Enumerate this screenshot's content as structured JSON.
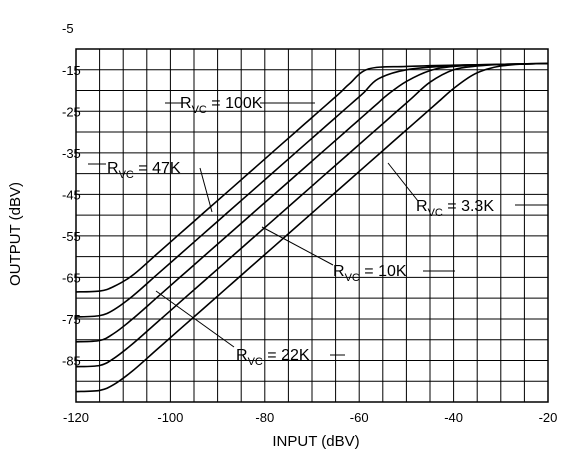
{
  "chart_data": {
    "type": "line",
    "title": "",
    "xlabel": "INPUT (dBV)",
    "ylabel": "OUTPUT (dBV)",
    "xlim": [
      -120,
      -20
    ],
    "ylim": [
      -95,
      -10
    ],
    "grid": true,
    "legend": "none",
    "x_ticks": [
      "-120",
      "-100",
      "-80",
      "-60",
      "-40",
      "-20"
    ],
    "y_ticks": [
      "-5",
      "-15",
      "-25",
      "-35",
      "-45",
      "-55",
      "-65",
      "-75",
      "-85"
    ],
    "series": [
      {
        "label_main": "R",
        "label_sub": "VC",
        "label_val": " = 100K",
        "x": [
          -120,
          -115,
          -112,
          -108,
          -103,
          -98,
          -93,
          -88,
          -83,
          -78,
          -73,
          -70,
          -68,
          -66,
          -64,
          -62,
          -58,
          -50,
          -40,
          -30,
          -20
        ],
        "y": [
          -68.5,
          -68.3,
          -67.2,
          -64.5,
          -59.5,
          -54.5,
          -49.5,
          -44.5,
          -39.5,
          -34.5,
          -29.5,
          -26.5,
          -24.5,
          -22.5,
          -20.5,
          -18.3,
          -14.8,
          -14.2,
          -13.9,
          -13.7,
          -13.5
        ]
      },
      {
        "label_main": "R",
        "label_sub": "VC",
        "label_val": " = 47K",
        "x": [
          -120,
          -115,
          -112,
          -108,
          -103,
          -98,
          -93,
          -88,
          -83,
          -78,
          -73,
          -68,
          -65,
          -63,
          -61,
          -59,
          -56,
          -50,
          -40,
          -30,
          -20
        ],
        "y": [
          -74.5,
          -74.2,
          -72.8,
          -69.5,
          -64.5,
          -59.5,
          -54.5,
          -49.5,
          -44.5,
          -39.5,
          -34.5,
          -29.5,
          -26.5,
          -24.5,
          -22.5,
          -20.5,
          -17.2,
          -15.0,
          -14.0,
          -13.7,
          -13.5
        ]
      },
      {
        "label_main": "R",
        "label_sub": "VC",
        "label_val": " = 22K",
        "x": [
          -120,
          -115,
          -112,
          -108,
          -103,
          -98,
          -93,
          -88,
          -83,
          -78,
          -73,
          -68,
          -63,
          -60,
          -58,
          -56,
          -54,
          -50,
          -45,
          -40,
          -30,
          -20
        ],
        "y": [
          -80.5,
          -80.2,
          -78.5,
          -75.0,
          -70.0,
          -65.0,
          -60.0,
          -55.0,
          -50.0,
          -45.0,
          -40.0,
          -35.0,
          -30.0,
          -27.0,
          -25.0,
          -23.0,
          -21.0,
          -17.8,
          -15.2,
          -14.2,
          -13.7,
          -13.5
        ]
      },
      {
        "label_main": "R",
        "label_sub": "VC",
        "label_val": " = 10K",
        "x": [
          -120,
          -115,
          -112,
          -108,
          -103,
          -98,
          -93,
          -88,
          -83,
          -78,
          -73,
          -68,
          -63,
          -58,
          -55,
          -53,
          -51,
          -49,
          -45,
          -40,
          -35,
          -30,
          -20
        ],
        "y": [
          -86.5,
          -86.2,
          -84.5,
          -81.0,
          -76.0,
          -71.0,
          -66.0,
          -61.0,
          -56.0,
          -51.0,
          -46.0,
          -41.0,
          -36.0,
          -31.0,
          -28.0,
          -26.0,
          -24.0,
          -22.0,
          -18.0,
          -15.0,
          -14.1,
          -13.7,
          -13.5
        ]
      },
      {
        "label_main": "R",
        "label_sub": "VC",
        "label_val": " = 3.3K",
        "x": [
          -120,
          -115,
          -112,
          -108,
          -103,
          -98,
          -93,
          -88,
          -83,
          -78,
          -73,
          -68,
          -63,
          -58,
          -53,
          -48,
          -45,
          -43,
          -40,
          -36,
          -33,
          -30,
          -25,
          -20
        ],
        "y": [
          -92.5,
          -92.2,
          -90.8,
          -87.5,
          -82.5,
          -77.5,
          -72.5,
          -67.5,
          -62.5,
          -57.5,
          -52.5,
          -47.5,
          -42.5,
          -37.5,
          -32.5,
          -27.5,
          -24.5,
          -22.5,
          -19.5,
          -16.3,
          -14.9,
          -14.1,
          -13.6,
          -13.5
        ]
      }
    ]
  }
}
